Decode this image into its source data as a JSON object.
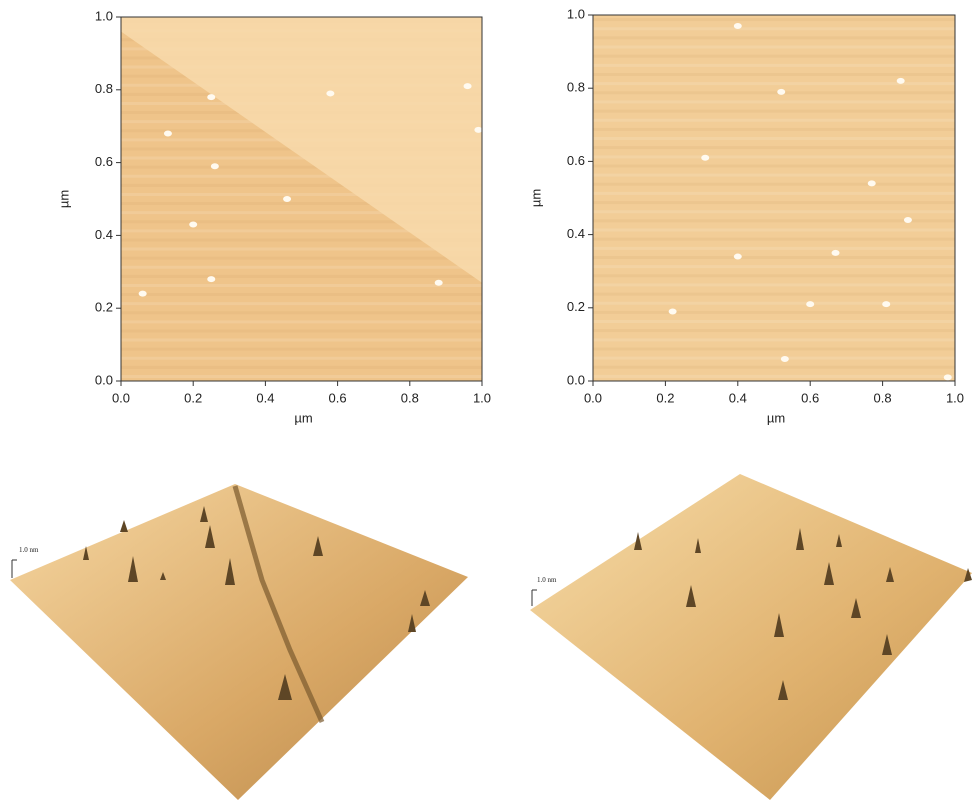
{
  "chart_data": [
    {
      "type": "image",
      "xlabel": "µm",
      "ylabel": "µm",
      "xlim": [
        0,
        1
      ],
      "ylim": [
        0,
        1
      ],
      "xticks": [
        {
          "value": 0,
          "label": "0.0"
        },
        0.2,
        0.4,
        0.6,
        0.8,
        {
          "value": 1,
          "label": "1.0"
        }
      ],
      "yticks": [
        {
          "value": 0,
          "label": "0.0"
        },
        0.2,
        0.4,
        0.6,
        0.8,
        {
          "value": 1,
          "label": "1.0"
        }
      ],
      "color": "#efc48a",
      "x": [
        0.06,
        0.13,
        0.2,
        0.25,
        0.26,
        0.25,
        0.46,
        0.58,
        0.88,
        0.96,
        0.99
      ],
      "y": [
        0.24,
        0.68,
        0.43,
        0.78,
        0.59,
        0.28,
        0.5,
        0.79,
        0.27,
        0.81,
        0.69
      ]
    },
    {
      "type": "image",
      "xlabel": "µm",
      "ylabel": "µm",
      "xlim": [
        0,
        1
      ],
      "ylim": [
        0,
        1
      ],
      "xticks": [
        {
          "value": 0,
          "label": "0.0"
        },
        0.2,
        0.4,
        0.6,
        0.8,
        {
          "value": 1,
          "label": "1.0"
        }
      ],
      "yticks": [
        {
          "value": 0,
          "label": "0.0"
        },
        0.2,
        0.4,
        0.6,
        0.8,
        {
          "value": 1,
          "label": "1.0"
        }
      ],
      "color": "#f2cd97",
      "x": [
        0.4,
        0.52,
        0.85,
        0.31,
        0.77,
        0.87,
        0.4,
        0.67,
        0.22,
        0.6,
        0.81,
        0.53,
        0.98
      ],
      "y": [
        0.97,
        0.79,
        0.82,
        0.61,
        0.54,
        0.44,
        0.34,
        0.35,
        0.19,
        0.21,
        0.21,
        0.06,
        0.01
      ]
    }
  ],
  "panels3d": [
    {
      "scale_label": "1.0 nm"
    },
    {
      "scale_label": "1.0 nm"
    }
  ]
}
